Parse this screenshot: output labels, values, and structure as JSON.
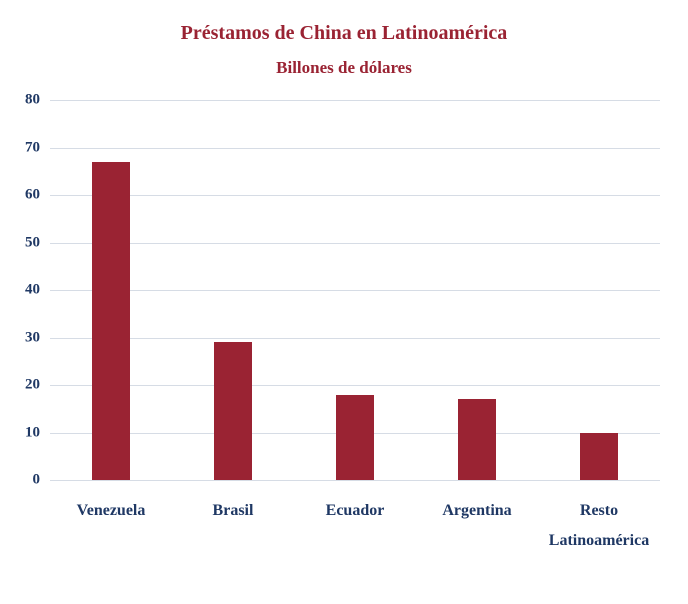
{
  "chart_data": {
    "type": "bar",
    "title": "Préstamos de China en Latinoamérica",
    "subtitle": "Billones de dólares",
    "categories": [
      "Venezuela",
      "Brasil",
      "Ecuador",
      "Argentina",
      "Resto\nLatinoamérica"
    ],
    "values": [
      67,
      29,
      18,
      17,
      10
    ],
    "xlabel": "",
    "ylabel": "",
    "ylim": [
      0,
      80
    ],
    "yticks": [
      0,
      10,
      20,
      30,
      40,
      50,
      60,
      70,
      80
    ],
    "grid": true,
    "legend": false,
    "bar_color": "#9A2333",
    "title_color": "#9A2333",
    "axis_label_color": "#1F3864",
    "gridline_color": "#D6DCE5",
    "background_color": "#FFFFFF"
  }
}
